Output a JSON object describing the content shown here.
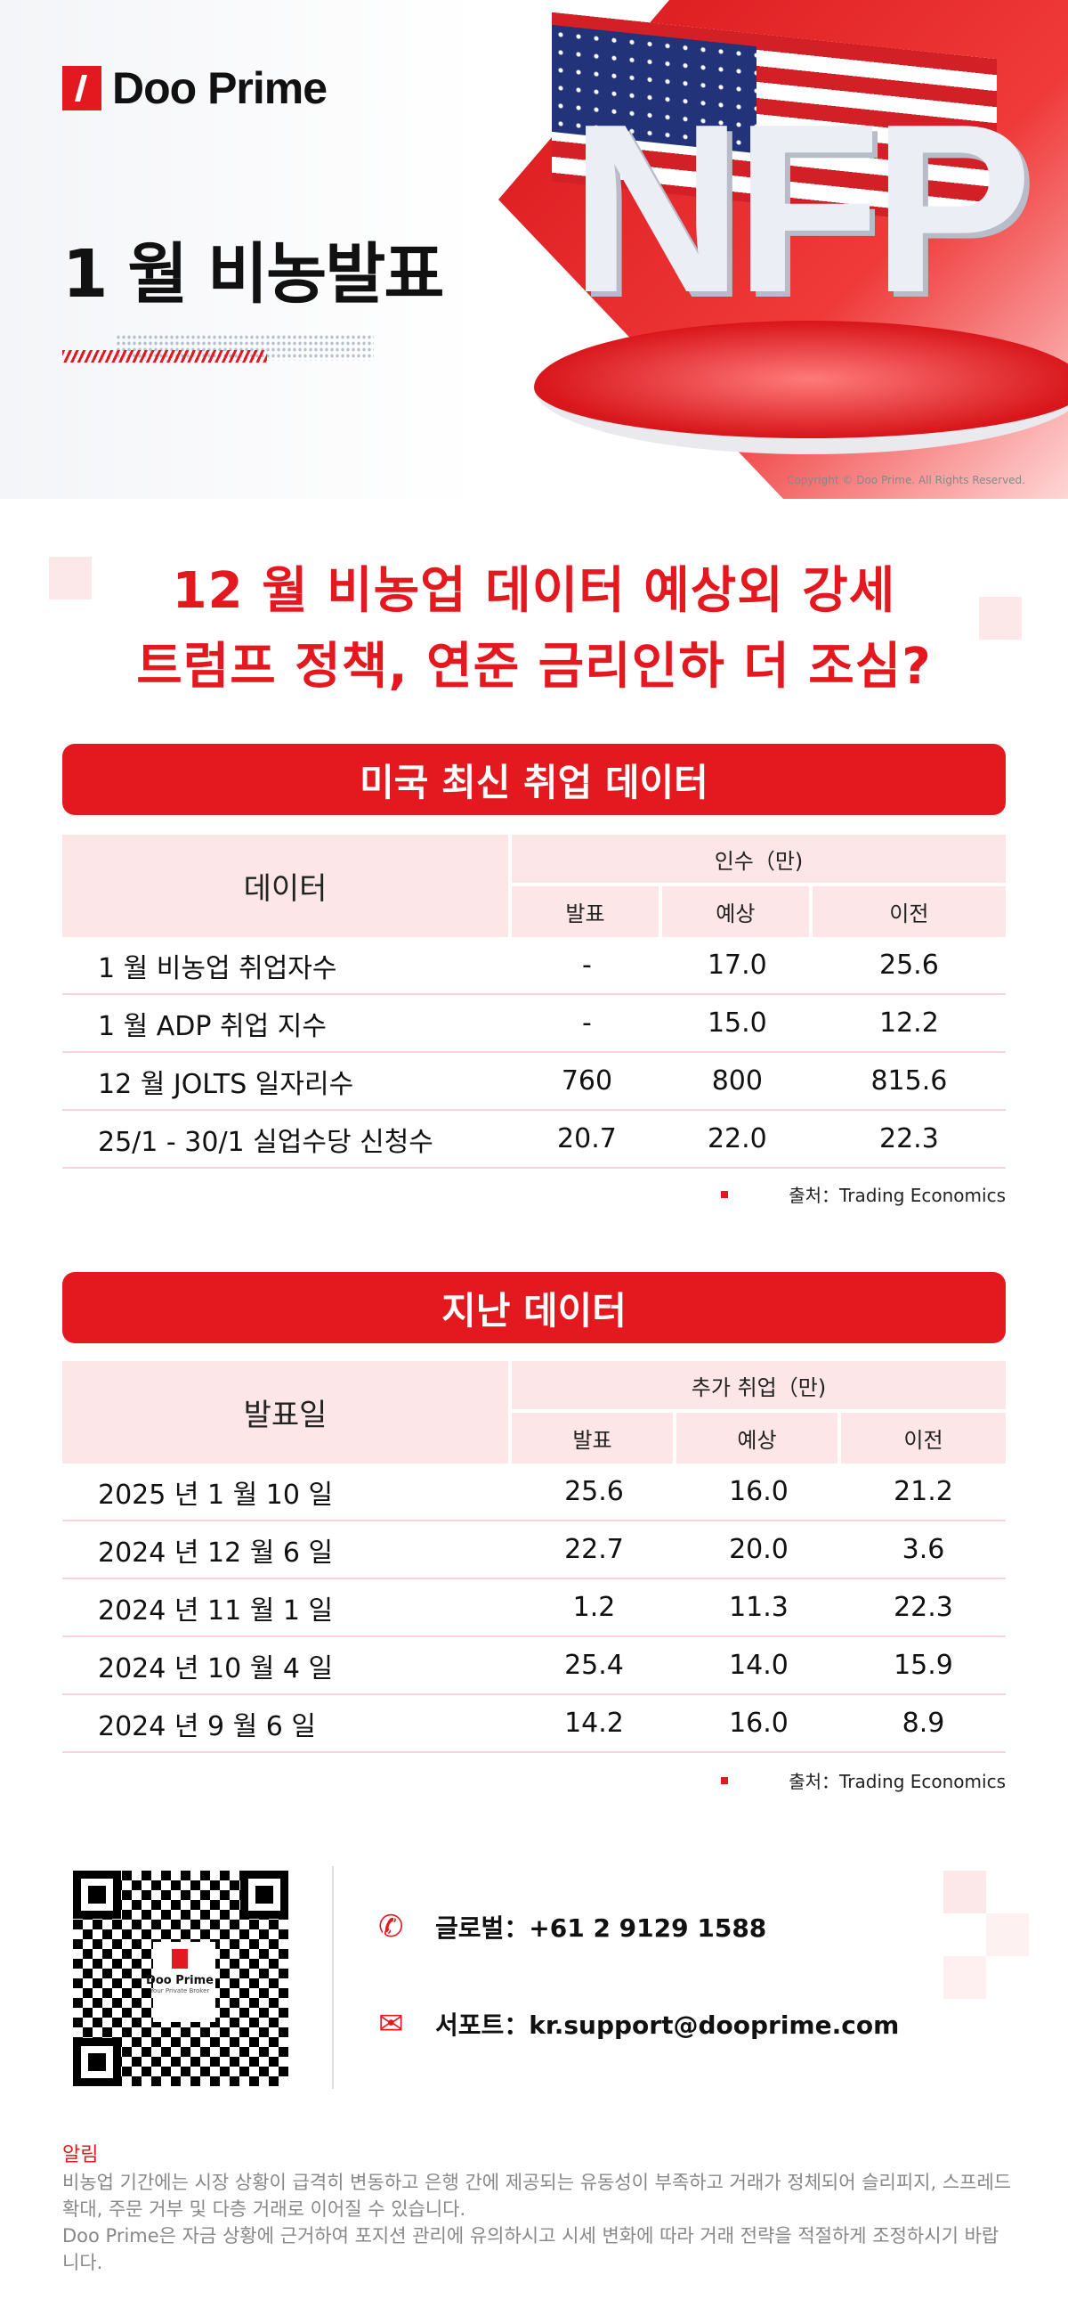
{
  "brand": {
    "name": "Doo Prime",
    "tagline": "Your Private Broker"
  },
  "hero": {
    "title": "1 월 비농발표",
    "art_text": "NFP",
    "copyright": "Copyright © Doo Prime. All Rights Reserved."
  },
  "headline": {
    "line1": "12 월 비농업 데이터 예상외 강세",
    "line2": "트럼프 정책, 연준 금리인하 더 조심?"
  },
  "section1": {
    "title": "미국 최신 취업 데이터",
    "col_label": "데이터",
    "group": "인수（만)",
    "subs": [
      "발표",
      "예상",
      "이전"
    ],
    "rows": [
      {
        "label": "1 월 비농업 취업자수",
        "actual": "-",
        "forecast": "17.0",
        "previous": "25.6"
      },
      {
        "label": "1 월 ADP 취업 지수",
        "actual": "-",
        "forecast": "15.0",
        "previous": "12.2"
      },
      {
        "label": "12 월 JOLTS 일자리수",
        "actual": "760",
        "forecast": "800",
        "previous": "815.6"
      },
      {
        "label": "25/1 - 30/1 실업수당 신청수",
        "actual": "20.7",
        "forecast": "22.0",
        "previous": "22.3"
      }
    ],
    "source": "출처：Trading Economics"
  },
  "section2": {
    "title": "지난 데이터",
    "col_label": "발표일",
    "group": "추가 취업（만)",
    "subs": [
      "발표",
      "예상",
      "이전"
    ],
    "rows": [
      {
        "label": "2025 년 1 월 10 일",
        "actual": "25.6",
        "forecast": "16.0",
        "previous": "21.2"
      },
      {
        "label": "2024 년 12 월 6 일",
        "actual": "22.7",
        "forecast": "20.0",
        "previous": "3.6"
      },
      {
        "label": "2024 년 11 월 1 일",
        "actual": "1.2",
        "forecast": "11.3",
        "previous": "22.3"
      },
      {
        "label": "2024 년 10 월 4 일",
        "actual": "25.4",
        "forecast": "14.0",
        "previous": "15.9"
      },
      {
        "label": "2024 년 9 월 6 일",
        "actual": "14.2",
        "forecast": "16.0",
        "previous": "8.9"
      }
    ],
    "source": "출처：Trading Economics"
  },
  "contact": {
    "phone_label": "글로벌：",
    "phone": "+61 2 9129 1588",
    "email_label": "서포트：",
    "email": "kr.support@dooprime.com",
    "phone_icon": "phone-icon",
    "email_icon": "envelope-icon"
  },
  "notice": {
    "title": "알림",
    "p1": "비농업 기간에는 시장 상황이 급격히 변동하고 은행 간에 제공되는 유동성이 부족하고 거래가 정체되어 슬리피지, 스프레드 확대, 주문 거부 및 다층 거래로 이어질 수 있습니다.",
    "p2": "Doo Prime은 자금 상황에 근거하여 포지션 관리에 유의하시고 시세 변화에 따라 거래 전략을 적절하게 조정하시기 바랍니다."
  },
  "colors": {
    "accent": "#e3191f",
    "header_bg": "#fce6e8"
  }
}
